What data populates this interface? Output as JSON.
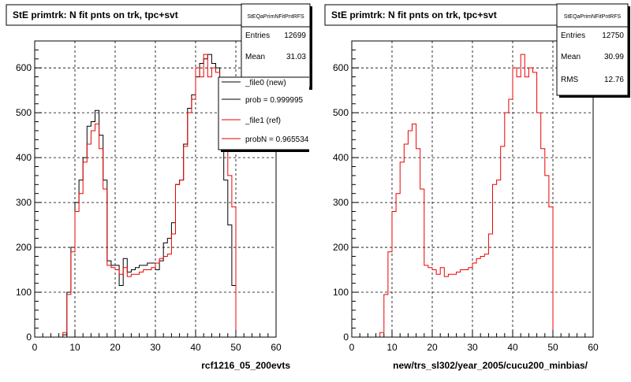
{
  "colors": {
    "new": "#000000",
    "ref": "#ee0000",
    "frame": "#000000",
    "shadow": "#000000"
  },
  "chart_data": [
    {
      "type": "histogram",
      "title": "StE primtrk: N fit pnts on trk, tpc+svt",
      "xlabel": "rcf1216_05_200evts",
      "xlim": [
        0,
        60
      ],
      "ylim": [
        0,
        660
      ],
      "xticks": [
        0,
        10,
        20,
        30,
        40,
        50,
        60
      ],
      "yticks": [
        0,
        100,
        200,
        300,
        400,
        500,
        600
      ],
      "grid": true,
      "bin_width": 1,
      "x_start": 0,
      "stats_box": {
        "header": "StEQaPrimNFitPntRFS",
        "rows": [
          {
            "label": "Entries",
            "value": "12699"
          },
          {
            "label": "Mean",
            "value": "31.03"
          }
        ]
      },
      "legend": {
        "position": "top-right",
        "entries": [
          {
            "label": "_file0 (new)",
            "color": "#000000"
          },
          {
            "label": "prob = 0.999995",
            "color": "#000000"
          },
          {
            "label": "_file1 (ref)",
            "color": "#ee0000"
          },
          {
            "label": "probN = 0.965534",
            "color": "#ee0000"
          }
        ]
      },
      "series": [
        {
          "name": "_file0 (new)",
          "color": "#000000",
          "values": [
            0,
            0,
            0,
            0,
            0,
            0,
            0,
            5,
            100,
            200,
            300,
            350,
            400,
            470,
            480,
            505,
            450,
            350,
            170,
            160,
            160,
            115,
            175,
            145,
            150,
            155,
            160,
            160,
            165,
            165,
            150,
            170,
            210,
            220,
            255,
            340,
            350,
            430,
            510,
            540,
            580,
            610,
            620,
            630,
            610,
            600,
            500,
            350,
            250,
            115,
            0,
            0,
            0,
            0,
            0,
            0,
            0,
            0,
            0,
            0
          ]
        },
        {
          "name": "_file1 (ref)",
          "color": "#ee0000",
          "values": [
            0,
            0,
            0,
            0,
            0,
            0,
            0,
            10,
            95,
            190,
            280,
            320,
            390,
            430,
            460,
            475,
            420,
            330,
            160,
            155,
            150,
            140,
            155,
            135,
            140,
            140,
            145,
            150,
            150,
            155,
            165,
            175,
            180,
            185,
            230,
            340,
            350,
            425,
            500,
            530,
            600,
            580,
            630,
            580,
            600,
            590,
            500,
            420,
            360,
            290,
            0,
            0,
            0,
            0,
            0,
            0,
            0,
            0,
            0,
            0
          ]
        }
      ]
    },
    {
      "type": "histogram",
      "title": "StE primtrk: N fit pnts on trk, tpc+svt",
      "xlabel": "new/trs_sl302/year_2005/cucu200_minbias/",
      "xlim": [
        0,
        60
      ],
      "ylim": [
        0,
        660
      ],
      "xticks": [
        0,
        10,
        20,
        30,
        40,
        50,
        60
      ],
      "yticks": [
        0,
        100,
        200,
        300,
        400,
        500,
        600
      ],
      "grid": true,
      "bin_width": 1,
      "x_start": 0,
      "stats_box": {
        "header": "StEQaPrimNFitPntRFS",
        "rows": [
          {
            "label": "Entries",
            "value": "12750"
          },
          {
            "label": "Mean",
            "value": "30.99"
          },
          {
            "label": "RMS",
            "value": "12.76"
          }
        ]
      },
      "series": [
        {
          "name": "",
          "color": "#ee0000",
          "values": [
            0,
            0,
            0,
            0,
            0,
            0,
            0,
            10,
            95,
            190,
            280,
            320,
            390,
            430,
            460,
            475,
            420,
            330,
            160,
            155,
            150,
            140,
            155,
            135,
            140,
            140,
            145,
            150,
            150,
            155,
            165,
            175,
            180,
            185,
            230,
            340,
            350,
            425,
            500,
            530,
            600,
            580,
            630,
            580,
            600,
            590,
            500,
            420,
            360,
            290,
            0,
            0,
            0,
            0,
            0,
            0,
            0,
            0,
            0,
            0
          ]
        }
      ]
    }
  ]
}
